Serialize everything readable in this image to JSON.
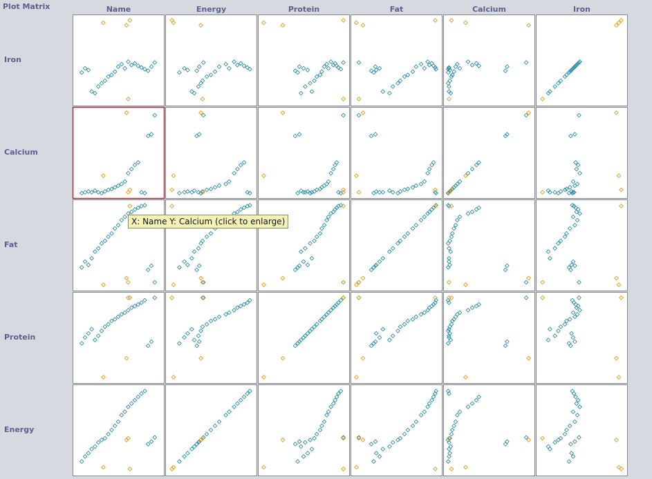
{
  "title": "Plot Matrix",
  "tooltip": "X: Name Y: Calcium (click to enlarge)",
  "colors": {
    "normal": "#2f8ea6",
    "highlight": "#e09a1a",
    "selected_border": "#cc2020",
    "panel_border": "#888888",
    "panel_bg": "#ffffff"
  },
  "chart_data": {
    "type": "scatter",
    "columns": [
      "Name",
      "Energy",
      "Protein",
      "Fat",
      "Calcium",
      "Iron"
    ],
    "rows": [
      "Iron",
      "Calcium",
      "Fat",
      "Protein",
      "Energy"
    ],
    "selected_cell": {
      "row": "Calcium",
      "column": "Name"
    },
    "records": [
      {
        "Name": 0.06,
        "Energy": 0.12,
        "Protein": 0.43,
        "Fat": 0.23,
        "Calcium": 0.01,
        "Iron": 0.35,
        "hl": false
      },
      {
        "Name": 0.1,
        "Energy": 0.18,
        "Protein": 0.5,
        "Fat": 0.3,
        "Calcium": 0.02,
        "Iron": 0.4,
        "hl": false
      },
      {
        "Name": 0.14,
        "Energy": 0.22,
        "Protein": 0.55,
        "Fat": 0.26,
        "Calcium": 0.03,
        "Iron": 0.38,
        "hl": false
      },
      {
        "Name": 0.18,
        "Energy": 0.27,
        "Protein": 0.6,
        "Fat": 0.34,
        "Calcium": 0.02,
        "Iron": 0.12,
        "hl": false
      },
      {
        "Name": 0.22,
        "Energy": 0.3,
        "Protein": 0.47,
        "Fat": 0.42,
        "Calcium": 0.04,
        "Iron": 0.1,
        "hl": false
      },
      {
        "Name": 0.26,
        "Energy": 0.35,
        "Protein": 0.52,
        "Fat": 0.46,
        "Calcium": 0.02,
        "Iron": 0.18,
        "hl": false
      },
      {
        "Name": 0.3,
        "Energy": 0.38,
        "Protein": 0.58,
        "Fat": 0.52,
        "Calcium": 0.01,
        "Iron": 0.22,
        "hl": false
      },
      {
        "Name": 0.34,
        "Energy": 0.4,
        "Protein": 0.63,
        "Fat": 0.55,
        "Calcium": 0.03,
        "Iron": 0.25,
        "hl": false
      },
      {
        "Name": 0.38,
        "Energy": 0.45,
        "Protein": 0.66,
        "Fat": 0.6,
        "Calcium": 0.05,
        "Iron": 0.3,
        "hl": false
      },
      {
        "Name": 0.42,
        "Energy": 0.5,
        "Protein": 0.7,
        "Fat": 0.64,
        "Calcium": 0.06,
        "Iron": 0.32,
        "hl": false
      },
      {
        "Name": 0.46,
        "Energy": 0.55,
        "Protein": 0.72,
        "Fat": 0.7,
        "Calcium": 0.08,
        "Iron": 0.36,
        "hl": false
      },
      {
        "Name": 0.5,
        "Energy": 0.6,
        "Protein": 0.75,
        "Fat": 0.74,
        "Calcium": 0.1,
        "Iron": 0.42,
        "hl": false
      },
      {
        "Name": 0.54,
        "Energy": 0.68,
        "Protein": 0.78,
        "Fat": 0.8,
        "Calcium": 0.12,
        "Iron": 0.45,
        "hl": false
      },
      {
        "Name": 0.58,
        "Energy": 0.72,
        "Protein": 0.8,
        "Fat": 0.84,
        "Calcium": 0.15,
        "Iron": 0.4,
        "hl": false
      },
      {
        "Name": 0.62,
        "Energy": 0.78,
        "Protein": 0.83,
        "Fat": 0.88,
        "Calcium": 0.25,
        "Iron": 0.48,
        "hl": false
      },
      {
        "Name": 0.66,
        "Energy": 0.82,
        "Protein": 0.86,
        "Fat": 0.9,
        "Calcium": 0.3,
        "Iron": 0.44,
        "hl": false
      },
      {
        "Name": 0.7,
        "Energy": 0.86,
        "Protein": 0.88,
        "Fat": 0.93,
        "Calcium": 0.35,
        "Iron": 0.46,
        "hl": false
      },
      {
        "Name": 0.74,
        "Energy": 0.9,
        "Protein": 0.9,
        "Fat": 0.95,
        "Calcium": 0.38,
        "Iron": 0.43,
        "hl": false
      },
      {
        "Name": 0.78,
        "Energy": 0.94,
        "Protein": 0.92,
        "Fat": 0.97,
        "Calcium": 0.02,
        "Iron": 0.41,
        "hl": false
      },
      {
        "Name": 0.82,
        "Energy": 0.97,
        "Protein": 0.95,
        "Fat": 0.98,
        "Calcium": 0.01,
        "Iron": 0.39,
        "hl": false
      },
      {
        "Name": 0.86,
        "Energy": 0.33,
        "Protein": 0.4,
        "Fat": 0.2,
        "Calcium": 0.7,
        "Iron": 0.37,
        "hl": false
      },
      {
        "Name": 0.9,
        "Energy": 0.36,
        "Protein": 0.45,
        "Fat": 0.25,
        "Calcium": 0.72,
        "Iron": 0.42,
        "hl": false
      },
      {
        "Name": 0.94,
        "Energy": 0.41,
        "Protein": 0.98,
        "Fat": 0.05,
        "Calcium": 0.95,
        "Iron": 0.47,
        "hl": false
      },
      {
        "Name": 0.32,
        "Energy": 0.05,
        "Protein": 0.02,
        "Fat": 0.02,
        "Calcium": 0.22,
        "Iron": 0.95,
        "hl": true
      },
      {
        "Name": 0.6,
        "Energy": 0.38,
        "Protein": 0.25,
        "Fat": 0.1,
        "Calcium": 0.98,
        "Iron": 0.92,
        "hl": true
      },
      {
        "Name": 0.62,
        "Energy": 0.4,
        "Protein": 0.98,
        "Fat": 0.05,
        "Calcium": 0.02,
        "Iron": 0.03,
        "hl": true
      },
      {
        "Name": 0.64,
        "Energy": 0.03,
        "Protein": 0.98,
        "Fat": 0.97,
        "Calcium": 0.05,
        "Iron": 0.98,
        "hl": true
      }
    ]
  }
}
